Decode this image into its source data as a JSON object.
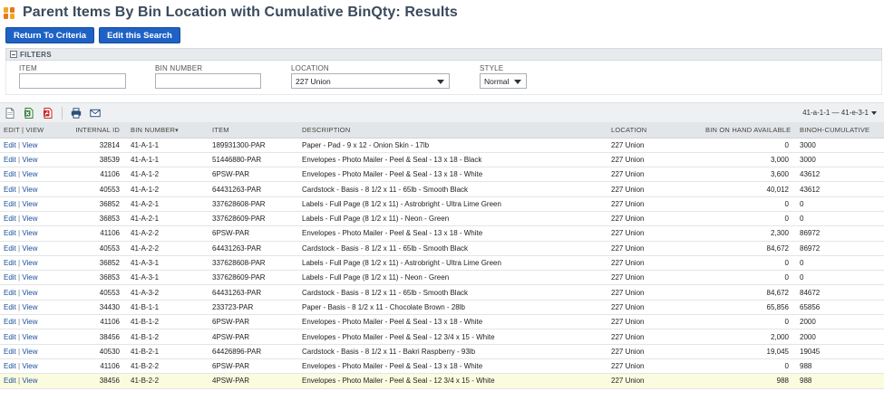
{
  "page": {
    "title": "Parent Items By Bin Location with Cumulative BinQty: Results"
  },
  "buttons": {
    "return_label": "Return To Criteria",
    "edit_search_label": "Edit this Search"
  },
  "filters": {
    "heading": "FILTERS",
    "item": {
      "label": "ITEM",
      "value": ""
    },
    "bin_number": {
      "label": "BIN NUMBER",
      "value": ""
    },
    "location": {
      "label": "LOCATION",
      "value": "227 Union"
    },
    "style": {
      "label": "STYLE",
      "value": "Normal"
    }
  },
  "toolbar": {
    "icons": [
      "export-csv-icon",
      "export-excel-icon",
      "export-pdf-icon",
      "print-icon",
      "email-icon"
    ],
    "range": "41-a-1-1 — 41-e-3-1"
  },
  "colors": {
    "accent": "#1e62c6",
    "title": "#3a4a5c",
    "link": "#1a4f9c",
    "highlight_row": "#fbfbe0"
  },
  "table": {
    "headers": {
      "edit_view": "EDIT | VIEW",
      "internal_id": "INTERNAL ID",
      "bin_number": "BIN NUMBER",
      "item": "ITEM",
      "description": "DESCRIPTION",
      "location": "LOCATION",
      "bin_on_hand": "BIN ON HAND AVAILABLE",
      "binoh_cumulative": "BINOH-CUMULATIVE"
    },
    "edit_label": "Edit",
    "view_label": "View",
    "rows": [
      {
        "id": "32814",
        "bin": "41-A-1-1",
        "item": "189931300-PAR",
        "desc": "Paper - Pad - 9 x 12 - Onion Skin - 17lb",
        "loc": "227 Union",
        "onhand": "0",
        "cum": "3000"
      },
      {
        "id": "38539",
        "bin": "41-A-1-1",
        "item": "51446880-PAR",
        "desc": "Envelopes - Photo Mailer - Peel & Seal - 13 x 18 - Black",
        "loc": "227 Union",
        "onhand": "3,000",
        "cum": "3000"
      },
      {
        "id": "41106",
        "bin": "41-A-1-2",
        "item": "6PSW-PAR",
        "desc": "Envelopes - Photo Mailer - Peel & Seal - 13 x 18 - White",
        "loc": "227 Union",
        "onhand": "3,600",
        "cum": "43612"
      },
      {
        "id": "40553",
        "bin": "41-A-1-2",
        "item": "64431263-PAR",
        "desc": "Cardstock - Basis - 8 1/2 x 11 - 65lb - Smooth Black",
        "loc": "227 Union",
        "onhand": "40,012",
        "cum": "43612"
      },
      {
        "id": "36852",
        "bin": "41-A-2-1",
        "item": "337628608-PAR",
        "desc": "Labels - Full Page (8 1/2 x 11) - Astrobright - Ultra Lime Green",
        "loc": "227 Union",
        "onhand": "0",
        "cum": "0"
      },
      {
        "id": "36853",
        "bin": "41-A-2-1",
        "item": "337628609-PAR",
        "desc": "Labels - Full Page (8 1/2 x 11) - Neon - Green",
        "loc": "227 Union",
        "onhand": "0",
        "cum": "0"
      },
      {
        "id": "41106",
        "bin": "41-A-2-2",
        "item": "6PSW-PAR",
        "desc": "Envelopes - Photo Mailer - Peel & Seal - 13 x 18 - White",
        "loc": "227 Union",
        "onhand": "2,300",
        "cum": "86972"
      },
      {
        "id": "40553",
        "bin": "41-A-2-2",
        "item": "64431263-PAR",
        "desc": "Cardstock - Basis - 8 1/2 x 11 - 65lb - Smooth Black",
        "loc": "227 Union",
        "onhand": "84,672",
        "cum": "86972"
      },
      {
        "id": "36852",
        "bin": "41-A-3-1",
        "item": "337628608-PAR",
        "desc": "Labels - Full Page (8 1/2 x 11) - Astrobright - Ultra Lime Green",
        "loc": "227 Union",
        "onhand": "0",
        "cum": "0"
      },
      {
        "id": "36853",
        "bin": "41-A-3-1",
        "item": "337628609-PAR",
        "desc": "Labels - Full Page (8 1/2 x 11) - Neon - Green",
        "loc": "227 Union",
        "onhand": "0",
        "cum": "0"
      },
      {
        "id": "40553",
        "bin": "41-A-3-2",
        "item": "64431263-PAR",
        "desc": "Cardstock - Basis - 8 1/2 x 11 - 65lb - Smooth Black",
        "loc": "227 Union",
        "onhand": "84,672",
        "cum": "84672"
      },
      {
        "id": "34430",
        "bin": "41-B-1-1",
        "item": "233723-PAR",
        "desc": "Paper - Basis - 8 1/2 x 11 - Chocolate Brown - 28lb",
        "loc": "227 Union",
        "onhand": "65,856",
        "cum": "65856"
      },
      {
        "id": "41106",
        "bin": "41-B-1-2",
        "item": "6PSW-PAR",
        "desc": "Envelopes - Photo Mailer - Peel & Seal - 13 x 18 - White",
        "loc": "227 Union",
        "onhand": "0",
        "cum": "2000"
      },
      {
        "id": "38456",
        "bin": "41-B-1-2",
        "item": "4PSW-PAR",
        "desc": "Envelopes - Photo Mailer - Peel & Seal - 12 3/4 x 15 - White",
        "loc": "227 Union",
        "onhand": "2,000",
        "cum": "2000"
      },
      {
        "id": "40530",
        "bin": "41-B-2-1",
        "item": "64426896-PAR",
        "desc": "Cardstock - Basis - 8 1/2 x 11 - Bakri Raspberry - 93lb",
        "loc": "227 Union",
        "onhand": "19,045",
        "cum": "19045"
      },
      {
        "id": "41106",
        "bin": "41-B-2-2",
        "item": "6PSW-PAR",
        "desc": "Envelopes - Photo Mailer - Peel & Seal - 13 x 18 - White",
        "loc": "227 Union",
        "onhand": "0",
        "cum": "988"
      },
      {
        "id": "38456",
        "bin": "41-B-2-2",
        "item": "4PSW-PAR",
        "desc": "Envelopes - Photo Mailer - Peel & Seal - 12 3/4 x 15 - White",
        "loc": "227 Union",
        "onhand": "988",
        "cum": "988"
      }
    ]
  }
}
